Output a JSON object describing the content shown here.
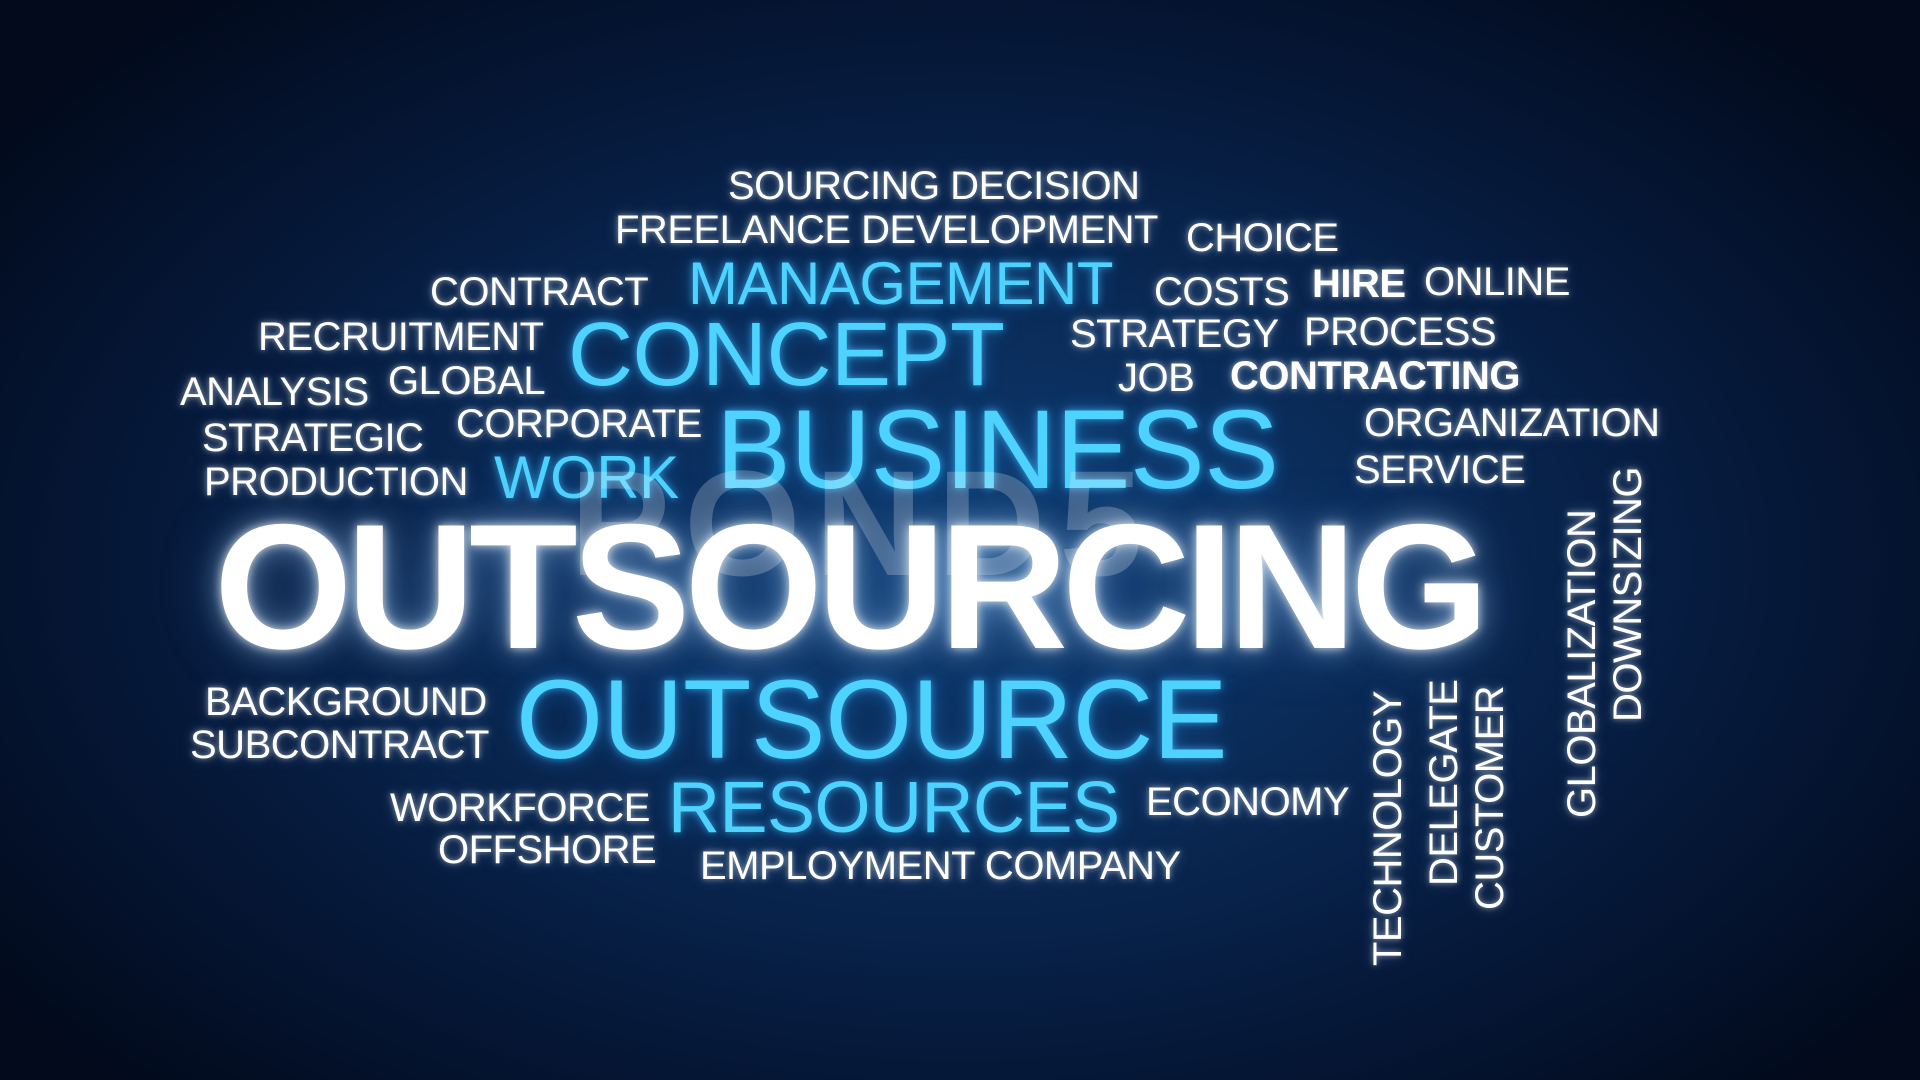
{
  "cloud": {
    "hero": "OUTSOURCING",
    "watermark": "POND5",
    "words": {
      "sourcing_decision": "SOURCING DECISION",
      "freelance_development": "FREELANCE DEVELOPMENT",
      "choice": "CHOICE",
      "contract": "CONTRACT",
      "management": "MANAGEMENT",
      "costs": "COSTS",
      "hire": "HIRE",
      "online": "ONLINE",
      "recruitment": "RECRUITMENT",
      "concept": "CONCEPT",
      "strategy": "STRATEGY",
      "process": "PROCESS",
      "analysis": "ANALYSIS",
      "global": "GLOBAL",
      "job": "JOB",
      "contracting": "CONTRACTING",
      "strategic": "STRATEGIC",
      "corporate": "CORPORATE",
      "business": "BUSINESS",
      "organization": "ORGANIZATION",
      "production": "PRODUCTION",
      "work": "WORK",
      "service": "SERVICE",
      "background": "BACKGROUND",
      "outsource": "OUTSOURCE",
      "subcontract": "SUBCONTRACT",
      "workforce": "WORKFORCE",
      "resources": "RESOURCES",
      "economy": "ECONOMY",
      "offshore": "OFFSHORE",
      "employment_company": "EMPLOYMENT COMPANY",
      "technology": "TECHNOLOGY",
      "delegate": "DELEGATE",
      "customer": "CUSTOMER",
      "globalization": "GLOBALIZATION",
      "downsizing": "DOWNSIZING"
    }
  },
  "colors": {
    "background_center": "#0f3d72",
    "background_edge": "#020a1c",
    "white_words": "#ffffff",
    "cyan_words": "#4ed2ff"
  }
}
